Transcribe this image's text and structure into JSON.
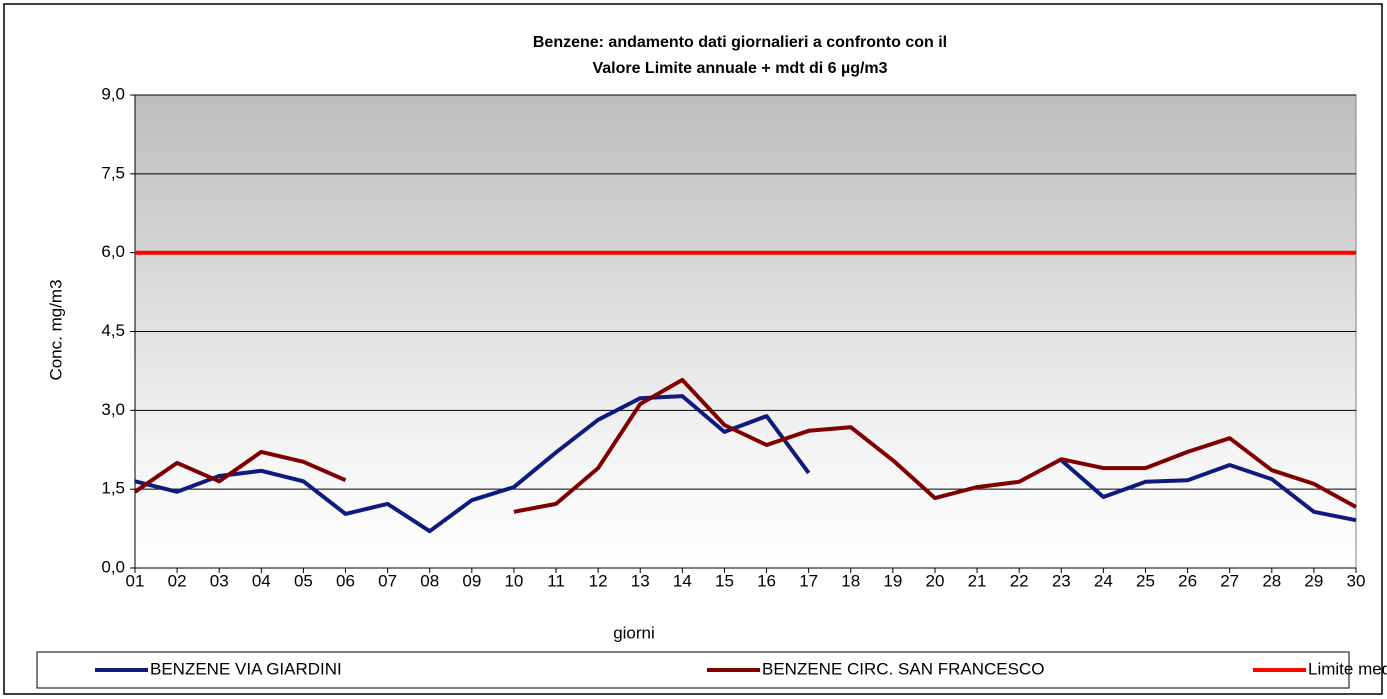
{
  "chart_data": {
    "type": "line",
    "title": [
      "Benzene: andamento dati giornalieri a confronto con il",
      "Valore Limite annuale + mdt  di 6 µg/m3"
    ],
    "x_label": "giorni",
    "y_label": "Conc. mg/m3",
    "categories": [
      "01",
      "02",
      "03",
      "04",
      "05",
      "06",
      "07",
      "08",
      "09",
      "10",
      "11",
      "12",
      "13",
      "14",
      "15",
      "16",
      "17",
      "18",
      "19",
      "20",
      "21",
      "22",
      "23",
      "24",
      "25",
      "26",
      "27",
      "28",
      "29",
      "30"
    ],
    "series": [
      {
        "name": "BENZENE VIA GIARDINI",
        "color": "#0d1a80",
        "values": [
          1.65,
          1.45,
          1.75,
          1.85,
          1.65,
          1.03,
          1.22,
          0.7,
          1.29,
          1.54,
          2.2,
          2.82,
          3.23,
          3.27,
          2.59,
          2.89,
          1.81,
          null,
          null,
          null,
          null,
          null,
          2.05,
          1.35,
          1.64,
          1.67,
          1.96,
          1.69,
          1.07,
          0.91
        ]
      },
      {
        "name": "BENZENE CIRC. SAN FRANCESCO",
        "color": "#800000",
        "values": [
          1.45,
          2.0,
          1.65,
          2.21,
          2.02,
          1.67,
          null,
          null,
          null,
          1.07,
          1.22,
          1.9,
          3.12,
          3.58,
          2.72,
          2.34,
          2.61,
          2.68,
          2.05,
          1.33,
          1.54,
          1.64,
          2.07,
          1.9,
          1.9,
          2.21,
          2.47,
          1.86,
          1.6,
          1.16
        ]
      },
      {
        "name": "Limite media annuale",
        "color": "#ff0000",
        "values": [
          6,
          6,
          6,
          6,
          6,
          6,
          6,
          6,
          6,
          6,
          6,
          6,
          6,
          6,
          6,
          6,
          6,
          6,
          6,
          6,
          6,
          6,
          6,
          6,
          6,
          6,
          6,
          6,
          6,
          6
        ]
      }
    ],
    "ylim": [
      0,
      9
    ],
    "yticks": [
      {
        "value": 0,
        "label": "0,0"
      },
      {
        "value": 1.5,
        "label": "1,5"
      },
      {
        "value": 3,
        "label": "3,0"
      },
      {
        "value": 4.5,
        "label": "4,5"
      },
      {
        "value": 6,
        "label": "6,0"
      },
      {
        "value": 7.5,
        "label": "7,5"
      },
      {
        "value": 9,
        "label": "9,0"
      }
    ],
    "grid": true,
    "legend": "bottom"
  }
}
